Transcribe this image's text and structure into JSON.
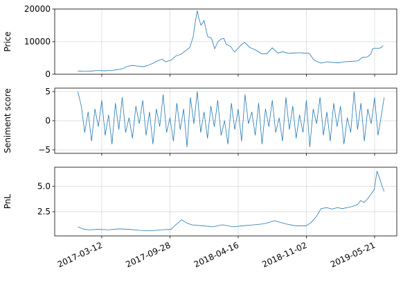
{
  "chart_data": [
    {
      "type": "line",
      "ylabel": "Price",
      "ylim": [
        0,
        20000
      ],
      "yticks": [
        0,
        10000,
        20000
      ],
      "ytick_labels": [
        "0",
        "10000",
        "20000"
      ],
      "xlim": [
        "2016-10-25",
        "2019-07-25"
      ],
      "xticks": [
        "2017-03-12",
        "2017-09-28",
        "2018-04-16",
        "2018-11-02",
        "2019-05-21"
      ],
      "xtick_labels": [],
      "grid": true,
      "color": "#1f77b4",
      "series": [
        {
          "x": [
            "2017-01-01",
            "2017-01-20",
            "2017-02-10",
            "2017-03-01",
            "2017-03-20",
            "2017-04-10",
            "2017-04-28",
            "2017-05-15",
            "2017-05-25",
            "2017-06-10",
            "2017-06-25",
            "2017-07-10",
            "2017-07-25",
            "2017-08-10",
            "2017-08-25",
            "2017-09-05",
            "2017-09-15",
            "2017-10-01",
            "2017-10-15",
            "2017-10-30",
            "2017-11-10",
            "2017-11-25",
            "2017-12-05",
            "2017-12-12",
            "2017-12-17",
            "2017-12-22",
            "2017-12-28",
            "2018-01-06",
            "2018-01-12",
            "2018-01-17",
            "2018-01-28",
            "2018-02-06",
            "2018-02-16",
            "2018-02-25",
            "2018-03-05",
            "2018-03-12",
            "2018-03-25",
            "2018-04-05",
            "2018-04-16",
            "2018-04-25",
            "2018-05-05",
            "2018-05-20",
            "2018-06-05",
            "2018-06-25",
            "2018-07-10",
            "2018-07-25",
            "2018-08-10",
            "2018-08-25",
            "2018-09-10",
            "2018-09-25",
            "2018-10-10",
            "2018-10-25",
            "2018-11-10",
            "2018-11-16",
            "2018-11-22",
            "2018-12-01",
            "2018-12-15",
            "2019-01-01",
            "2019-01-20",
            "2019-02-05",
            "2019-02-20",
            "2019-03-05",
            "2019-03-20",
            "2019-04-03",
            "2019-04-15",
            "2019-04-30",
            "2019-05-10",
            "2019-05-15",
            "2019-05-25",
            "2019-06-01",
            "2019-06-10",
            "2019-06-15"
          ],
          "y": [
            1000,
            900,
            1000,
            1150,
            1050,
            1200,
            1400,
            1800,
            2400,
            2700,
            2500,
            2300,
            2700,
            3400,
            4200,
            4600,
            3800,
            4300,
            5600,
            6100,
            7000,
            8200,
            11500,
            16500,
            19500,
            17000,
            15000,
            16500,
            13500,
            11500,
            11000,
            7800,
            10000,
            10800,
            11000,
            9200,
            8500,
            6800,
            8000,
            9000,
            9800,
            8200,
            7500,
            6200,
            6400,
            8100,
            6500,
            6900,
            6400,
            6500,
            6600,
            6500,
            6400,
            5600,
            4600,
            4000,
            3400,
            3800,
            3600,
            3500,
            3800,
            3900,
            4000,
            4100,
            5200,
            5300,
            6200,
            7800,
            8000,
            7900,
            8200,
            8800
          ]
        }
      ]
    },
    {
      "type": "line",
      "ylabel": "Seniment score",
      "ylim": [
        -5.6,
        5.6
      ],
      "yticks": [
        -5,
        0,
        5
      ],
      "ytick_labels": [
        "−5",
        "0",
        "5"
      ],
      "xlim": [
        "2016-10-25",
        "2019-07-25"
      ],
      "xticks": [
        "2017-03-12",
        "2017-09-28",
        "2018-04-16",
        "2018-11-02",
        "2019-05-21"
      ],
      "xtick_labels": [],
      "grid": true,
      "color": "#1f77b4",
      "series": [
        {
          "x": [
            "2017-01-01",
            "2017-01-11",
            "2017-01-21",
            "2017-01-31",
            "2017-02-10",
            "2017-02-20",
            "2017-03-02",
            "2017-03-12",
            "2017-03-22",
            "2017-04-01",
            "2017-04-11",
            "2017-04-21",
            "2017-05-01",
            "2017-05-11",
            "2017-05-21",
            "2017-05-31",
            "2017-06-10",
            "2017-06-20",
            "2017-06-30",
            "2017-07-10",
            "2017-07-20",
            "2017-07-30",
            "2017-08-09",
            "2017-08-19",
            "2017-08-29",
            "2017-09-08",
            "2017-09-18",
            "2017-09-28",
            "2017-10-08",
            "2017-10-18",
            "2017-10-28",
            "2017-11-07",
            "2017-11-17",
            "2017-11-27",
            "2017-12-07",
            "2017-12-17",
            "2017-12-27",
            "2018-01-06",
            "2018-01-16",
            "2018-01-26",
            "2018-02-05",
            "2018-02-15",
            "2018-02-25",
            "2018-03-07",
            "2018-03-17",
            "2018-03-27",
            "2018-04-06",
            "2018-04-16",
            "2018-04-26",
            "2018-05-06",
            "2018-05-16",
            "2018-05-26",
            "2018-06-05",
            "2018-06-15",
            "2018-06-25",
            "2018-07-05",
            "2018-07-15",
            "2018-07-25",
            "2018-08-04",
            "2018-08-14",
            "2018-08-24",
            "2018-09-03",
            "2018-09-13",
            "2018-09-23",
            "2018-10-03",
            "2018-10-13",
            "2018-10-23",
            "2018-11-02",
            "2018-11-12",
            "2018-11-22",
            "2018-12-02",
            "2018-12-12",
            "2018-12-22",
            "2019-01-01",
            "2019-01-11",
            "2019-01-21",
            "2019-01-31",
            "2019-02-10",
            "2019-02-20",
            "2019-03-02",
            "2019-03-12",
            "2019-03-22",
            "2019-04-01",
            "2019-04-11",
            "2019-04-21",
            "2019-05-01",
            "2019-05-11",
            "2019-05-21",
            "2019-05-31",
            "2019-06-10",
            "2019-06-18"
          ],
          "y": [
            5.0,
            2.5,
            -2.0,
            1.5,
            -3.5,
            2.0,
            -1.0,
            3.5,
            -2.5,
            1.0,
            -4.0,
            3.0,
            -1.5,
            4.0,
            -2.0,
            0.5,
            -3.0,
            2.5,
            -0.5,
            3.5,
            -2.5,
            1.5,
            -4.0,
            2.0,
            -1.0,
            4.5,
            -2.0,
            0.5,
            -3.5,
            3.0,
            -1.5,
            2.0,
            -4.5,
            4.0,
            -0.5,
            5.0,
            -2.0,
            1.5,
            -3.0,
            2.5,
            -1.0,
            3.5,
            -2.5,
            0.0,
            -4.0,
            3.0,
            -1.5,
            2.0,
            -3.5,
            4.5,
            -0.5,
            1.5,
            -2.5,
            3.0,
            -4.0,
            2.0,
            -1.0,
            3.5,
            -2.0,
            0.5,
            -3.5,
            4.0,
            -1.5,
            2.5,
            -3.0,
            1.0,
            -2.0,
            3.5,
            -4.5,
            2.0,
            -0.5,
            4.0,
            -2.5,
            1.5,
            -3.5,
            3.0,
            -1.0,
            2.5,
            -4.0,
            0.5,
            -2.0,
            5.0,
            -1.5,
            3.0,
            -3.5,
            2.0,
            -0.5,
            4.0,
            -2.5,
            1.0,
            4.0
          ]
        }
      ]
    },
    {
      "type": "line",
      "ylabel": "PnL",
      "ylim": [
        0.1,
        6.9
      ],
      "yticks": [
        2.5,
        5.0
      ],
      "ytick_labels": [
        "2.5",
        "5.0"
      ],
      "xlim": [
        "2016-10-25",
        "2019-07-25"
      ],
      "xticks": [
        "2017-03-12",
        "2017-09-28",
        "2018-04-16",
        "2018-11-02",
        "2019-05-21"
      ],
      "xtick_labels": [
        "2017-03-12",
        "2017-09-28",
        "2018-04-16",
        "2018-11-02",
        "2019-05-21"
      ],
      "grid": true,
      "color": "#1f77b4",
      "series": [
        {
          "x": [
            "2017-01-01",
            "2017-01-15",
            "2017-02-01",
            "2017-03-01",
            "2017-04-01",
            "2017-05-01",
            "2017-06-01",
            "2017-07-01",
            "2017-08-01",
            "2017-09-01",
            "2017-10-01",
            "2017-10-15",
            "2017-11-01",
            "2017-11-15",
            "2017-12-01",
            "2018-01-01",
            "2018-02-01",
            "2018-03-01",
            "2018-04-01",
            "2018-05-01",
            "2018-06-01",
            "2018-07-01",
            "2018-08-01",
            "2018-09-01",
            "2018-10-01",
            "2018-11-01",
            "2018-11-15",
            "2018-12-01",
            "2018-12-15",
            "2019-01-01",
            "2019-01-15",
            "2019-02-01",
            "2019-02-15",
            "2019-03-01",
            "2019-03-15",
            "2019-04-01",
            "2019-04-10",
            "2019-04-20",
            "2019-05-01",
            "2019-05-10",
            "2019-05-20",
            "2019-05-28",
            "2019-06-05",
            "2019-06-12",
            "2019-06-18"
          ],
          "y": [
            1.0,
            0.8,
            0.7,
            0.75,
            0.7,
            0.8,
            0.75,
            0.65,
            0.6,
            0.7,
            0.75,
            1.2,
            1.7,
            1.4,
            1.2,
            1.1,
            1.0,
            1.2,
            1.0,
            1.1,
            1.2,
            1.3,
            1.6,
            1.3,
            1.1,
            1.1,
            1.4,
            2.0,
            2.8,
            2.9,
            2.75,
            2.9,
            2.8,
            2.9,
            3.0,
            3.2,
            3.6,
            3.4,
            3.8,
            4.2,
            4.7,
            6.5,
            5.8,
            5.0,
            4.5
          ]
        }
      ]
    }
  ]
}
